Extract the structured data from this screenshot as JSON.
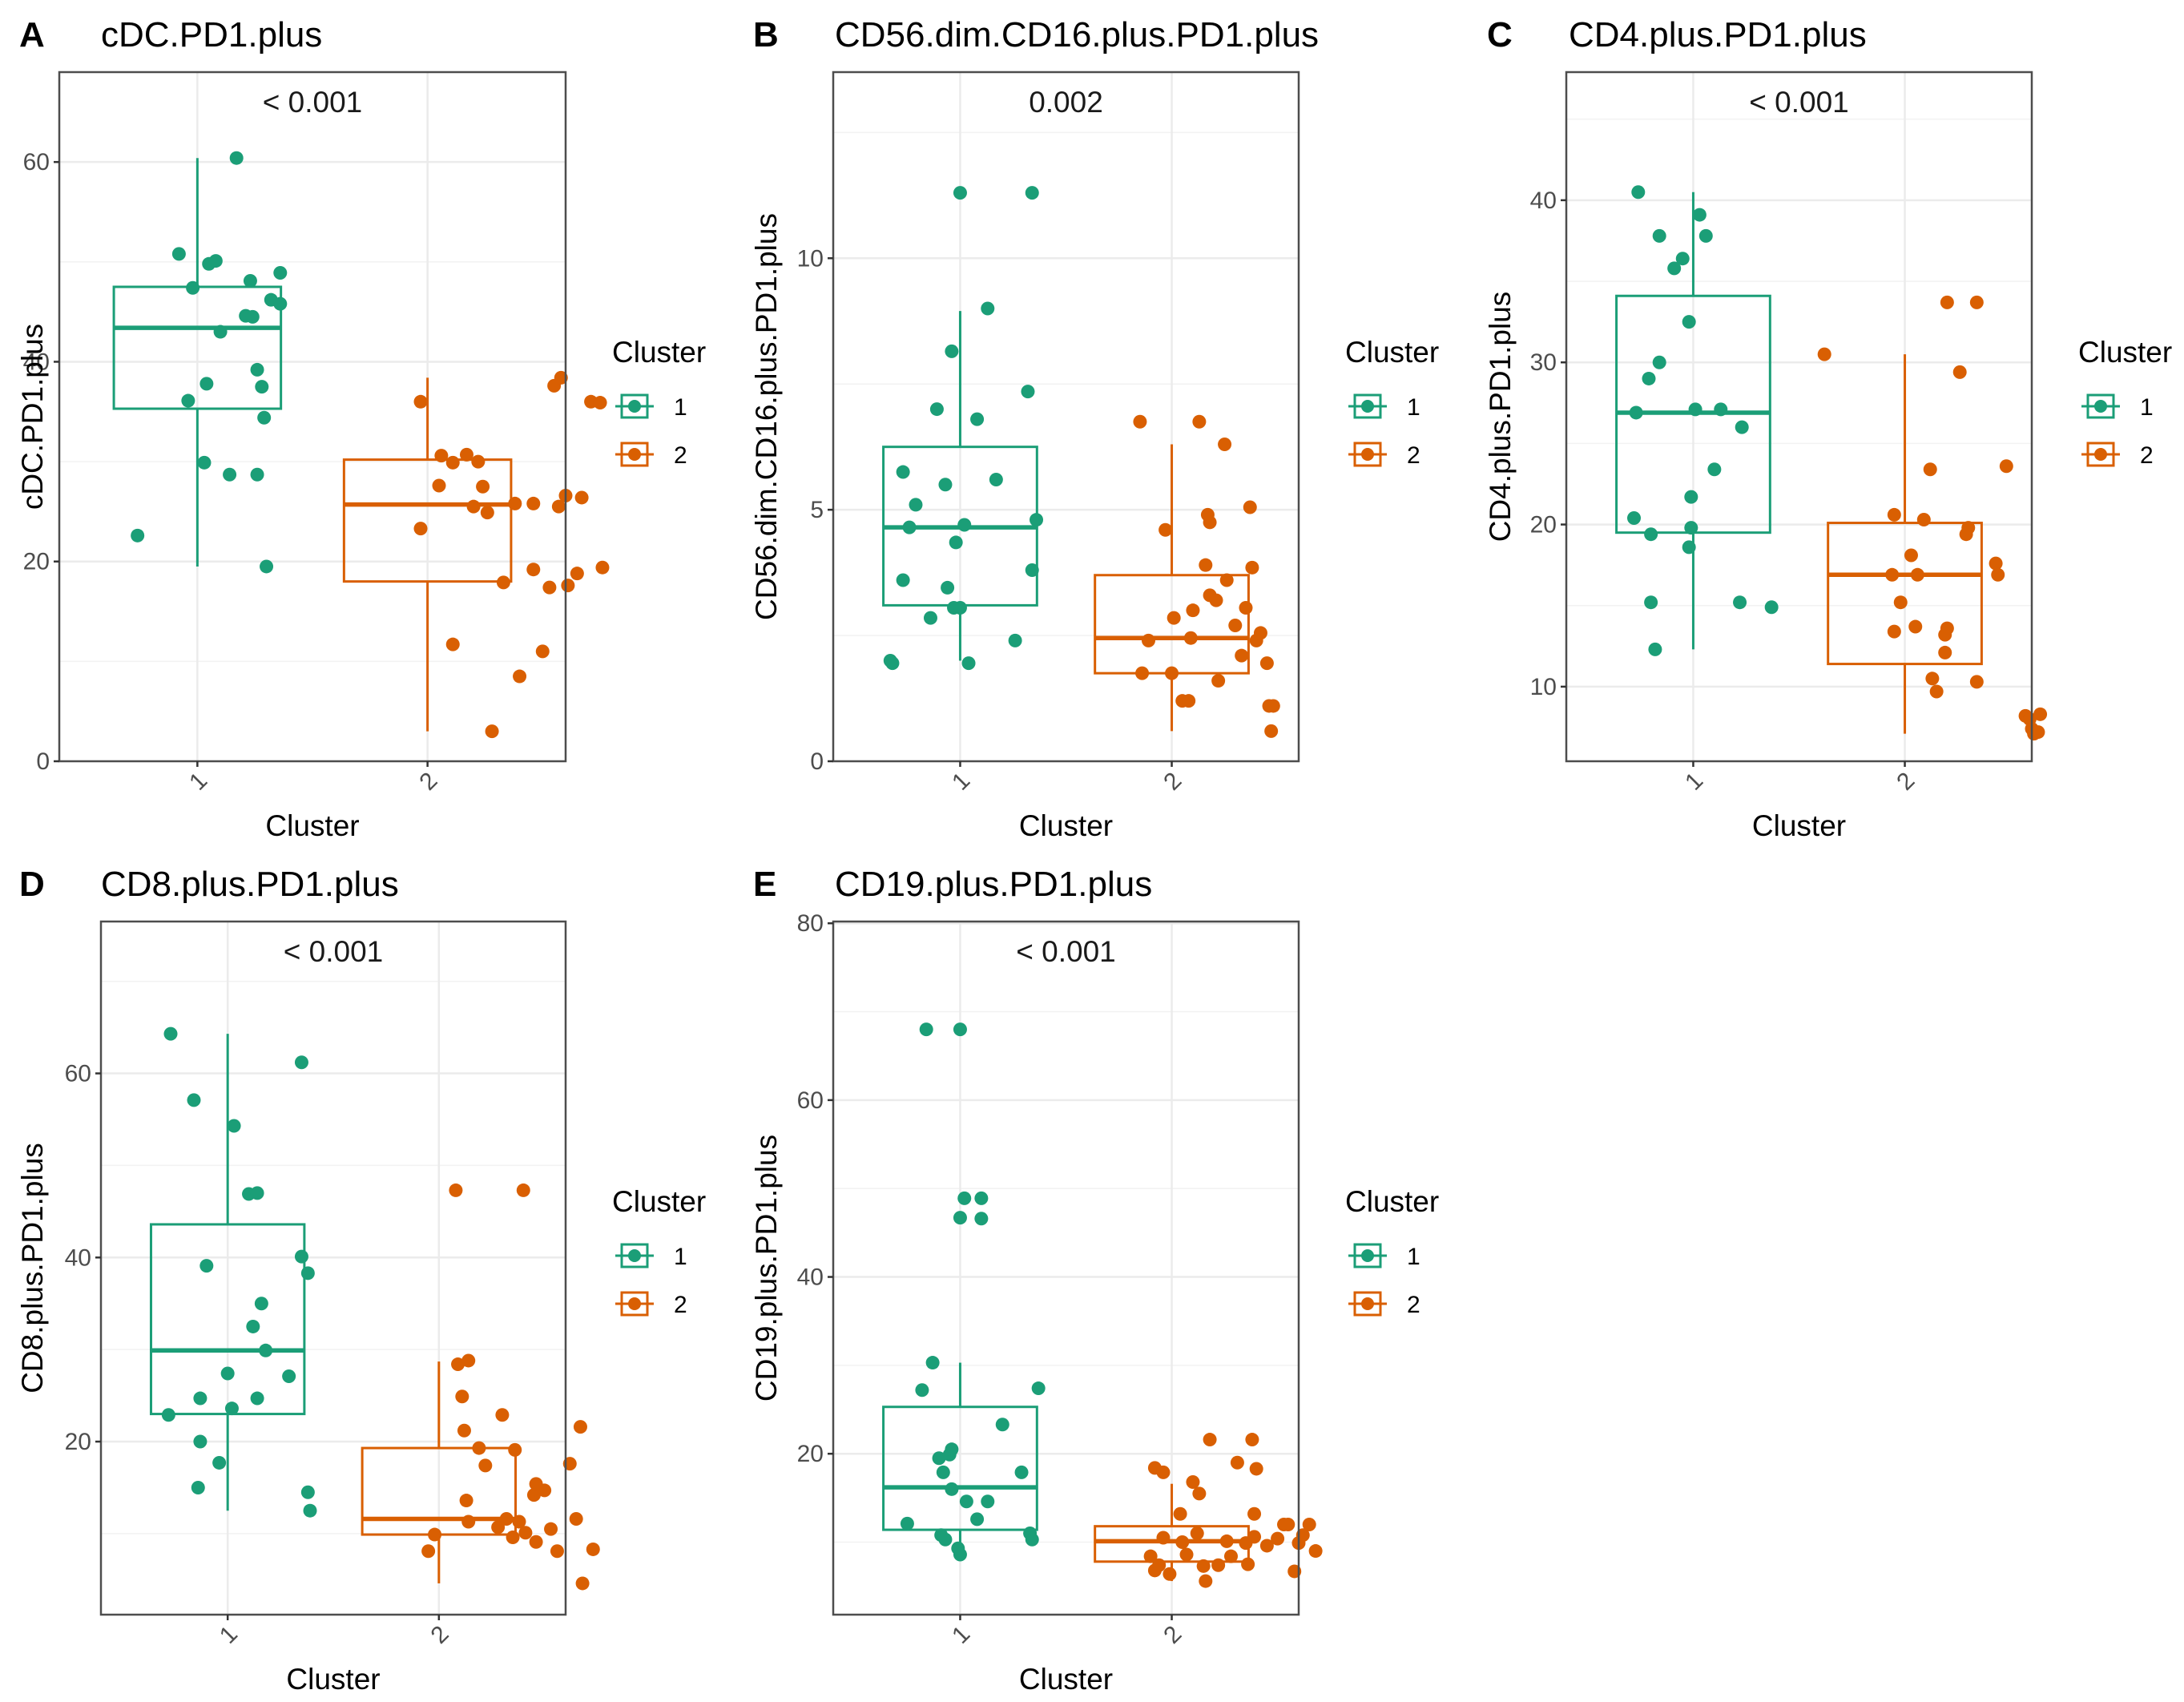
{
  "figure": {
    "colors": {
      "cluster1": "#1b9e77",
      "cluster2": "#d95f02",
      "grid": "#ebebeb",
      "border": "#4d4d4d"
    }
  },
  "chart_data": [
    {
      "type": "boxplot",
      "letter": "A",
      "title": "cDC.PD1.plus",
      "pvalue_label": "< 0.001",
      "xlabel": "Cluster",
      "ylabel": "cDC.PD1.plus",
      "categories": [
        "1",
        "2"
      ],
      "ylim": [
        0,
        69
      ],
      "yticks": [
        0,
        20,
        40,
        60
      ],
      "legend": {
        "title": "Cluster",
        "labels": [
          "1",
          "2"
        ]
      },
      "boxes": [
        {
          "cluster": "1",
          "q1": 35.3,
          "median": 43.4,
          "q3": 47.5,
          "whisker_low": 19.5,
          "whisker_high": 60.4
        },
        {
          "cluster": "2",
          "q1": 18.0,
          "median": 25.7,
          "q3": 30.2,
          "whisker_low": 3.0,
          "whisker_high": 38.4
        }
      ],
      "points": [
        [
          0.74,
          22.6
        ],
        [
          0.92,
          50.8
        ],
        [
          0.96,
          36.1
        ],
        [
          0.98,
          47.4
        ],
        [
          1.03,
          29.9
        ],
        [
          1.04,
          37.8
        ],
        [
          1.05,
          49.8
        ],
        [
          1.08,
          50.1
        ],
        [
          1.1,
          43.0
        ],
        [
          1.14,
          28.7
        ],
        [
          1.17,
          60.4
        ],
        [
          1.21,
          44.6
        ],
        [
          1.23,
          48.1
        ],
        [
          1.24,
          44.5
        ],
        [
          1.26,
          28.7
        ],
        [
          1.28,
          37.5
        ],
        [
          1.29,
          34.4
        ],
        [
          1.3,
          19.5
        ],
        [
          1.32,
          46.2
        ],
        [
          1.36,
          48.9
        ],
        [
          1.36,
          45.8
        ],
        [
          1.26,
          39.2
        ],
        [
          1.97,
          36.0
        ],
        [
          1.97,
          23.3
        ],
        [
          2.05,
          27.6
        ],
        [
          2.06,
          30.6
        ],
        [
          2.11,
          29.9
        ],
        [
          2.11,
          11.7
        ],
        [
          2.17,
          30.7
        ],
        [
          2.2,
          25.5
        ],
        [
          2.22,
          30.0
        ],
        [
          2.24,
          27.5
        ],
        [
          2.26,
          24.9
        ],
        [
          2.28,
          3.0
        ],
        [
          2.33,
          17.9
        ],
        [
          2.38,
          25.8
        ],
        [
          2.4,
          8.5
        ],
        [
          2.46,
          25.8
        ],
        [
          2.46,
          19.2
        ],
        [
          2.5,
          11.0
        ],
        [
          2.53,
          17.4
        ],
        [
          2.55,
          37.6
        ],
        [
          2.57,
          25.5
        ],
        [
          2.58,
          38.4
        ],
        [
          2.6,
          26.6
        ],
        [
          2.61,
          17.6
        ],
        [
          2.67,
          26.4
        ],
        [
          2.65,
          18.8
        ],
        [
          2.71,
          36.0
        ],
        [
          2.75,
          35.9
        ],
        [
          2.76,
          19.4
        ]
      ]
    },
    {
      "type": "boxplot",
      "letter": "B",
      "title": "CD56.dim.CD16.plus.PD1.plus",
      "pvalue_label": "0.002",
      "xlabel": "Cluster",
      "ylabel": "CD56.dim.CD16.plus.PD1.plus",
      "categories": [
        "1",
        "2"
      ],
      "ylim": [
        0,
        13.7
      ],
      "yticks": [
        0,
        5,
        10
      ],
      "legend": {
        "title": "Cluster",
        "labels": [
          "1",
          "2"
        ]
      },
      "boxes": [
        {
          "cluster": "1",
          "q1": 3.1,
          "median": 4.65,
          "q3": 6.25,
          "whisker_low": 2.0,
          "whisker_high": 8.95
        },
        {
          "cluster": "2",
          "q1": 1.75,
          "median": 2.45,
          "q3": 3.7,
          "whisker_low": 0.6,
          "whisker_high": 6.3
        }
      ],
      "points": [
        [
          0.67,
          2.0
        ],
        [
          0.68,
          1.95
        ],
        [
          0.73,
          5.75
        ],
        [
          0.73,
          3.6
        ],
        [
          0.76,
          4.65
        ],
        [
          0.79,
          5.1
        ],
        [
          0.86,
          2.85
        ],
        [
          0.89,
          7.0
        ],
        [
          0.93,
          5.5
        ],
        [
          0.94,
          3.45
        ],
        [
          0.96,
          8.15
        ],
        [
          0.97,
          3.05
        ],
        [
          0.98,
          4.35
        ],
        [
          1.0,
          11.3
        ],
        [
          1.0,
          3.05
        ],
        [
          1.02,
          4.7
        ],
        [
          1.04,
          1.95
        ],
        [
          1.08,
          6.8
        ],
        [
          1.13,
          9.0
        ],
        [
          1.17,
          5.6
        ],
        [
          1.26,
          2.4
        ],
        [
          1.32,
          7.35
        ],
        [
          1.34,
          11.3
        ],
        [
          1.34,
          3.8
        ],
        [
          1.36,
          4.8
        ],
        [
          1.85,
          6.75
        ],
        [
          1.86,
          1.75
        ],
        [
          1.89,
          2.4
        ],
        [
          1.97,
          4.6
        ],
        [
          2.0,
          1.75
        ],
        [
          2.01,
          2.85
        ],
        [
          2.05,
          1.2
        ],
        [
          2.08,
          1.2
        ],
        [
          2.09,
          2.45
        ],
        [
          2.1,
          3.0
        ],
        [
          2.13,
          6.75
        ],
        [
          2.16,
          3.9
        ],
        [
          2.17,
          4.9
        ],
        [
          2.18,
          4.75
        ],
        [
          2.18,
          3.3
        ],
        [
          2.21,
          3.2
        ],
        [
          2.22,
          1.6
        ],
        [
          2.25,
          6.3
        ],
        [
          2.26,
          3.6
        ],
        [
          2.3,
          2.7
        ],
        [
          2.33,
          2.1
        ],
        [
          2.35,
          3.05
        ],
        [
          2.37,
          5.05
        ],
        [
          2.38,
          3.85
        ],
        [
          2.4,
          2.4
        ],
        [
          2.42,
          2.55
        ],
        [
          2.45,
          1.95
        ],
        [
          2.46,
          1.1
        ],
        [
          2.48,
          1.1
        ],
        [
          2.47,
          0.6
        ]
      ]
    },
    {
      "type": "boxplot",
      "letter": "C",
      "title": "CD4.plus.PD1.plus",
      "pvalue_label": "< 0.001",
      "xlabel": "Cluster",
      "ylabel": "CD4.plus.PD1.plus",
      "categories": [
        "1",
        "2"
      ],
      "ylim": [
        5.4,
        47.9
      ],
      "yticks": [
        10,
        20,
        30,
        40
      ],
      "legend": {
        "title": "Cluster",
        "labels": [
          "1",
          "2"
        ]
      },
      "boxes": [
        {
          "cluster": "1",
          "q1": 19.5,
          "median": 26.9,
          "q3": 34.1,
          "whisker_low": 12.3,
          "whisker_high": 40.5
        },
        {
          "cluster": "2",
          "q1": 11.4,
          "median": 16.9,
          "q3": 20.1,
          "whisker_low": 7.1,
          "whisker_high": 30.5
        }
      ],
      "points": [
        [
          0.72,
          20.4
        ],
        [
          0.73,
          26.9
        ],
        [
          0.74,
          40.5
        ],
        [
          0.79,
          29.0
        ],
        [
          0.8,
          19.4
        ],
        [
          0.8,
          15.2
        ],
        [
          0.82,
          12.3
        ],
        [
          0.84,
          37.8
        ],
        [
          0.84,
          30.0
        ],
        [
          0.91,
          35.8
        ],
        [
          0.95,
          36.4
        ],
        [
          0.98,
          32.5
        ],
        [
          0.98,
          18.6
        ],
        [
          0.99,
          19.8
        ],
        [
          0.99,
          21.7
        ],
        [
          1.01,
          27.1
        ],
        [
          1.03,
          39.1
        ],
        [
          1.06,
          37.8
        ],
        [
          1.1,
          23.4
        ],
        [
          1.13,
          27.1
        ],
        [
          1.22,
          15.2
        ],
        [
          1.23,
          26.0
        ],
        [
          1.37,
          14.9
        ],
        [
          1.62,
          30.5
        ],
        [
          1.94,
          16.9
        ],
        [
          1.95,
          20.6
        ],
        [
          1.95,
          13.4
        ],
        [
          1.98,
          15.2
        ],
        [
          2.03,
          18.1
        ],
        [
          2.05,
          13.7
        ],
        [
          2.06,
          16.9
        ],
        [
          2.09,
          20.3
        ],
        [
          2.12,
          23.4
        ],
        [
          2.13,
          10.5
        ],
        [
          2.15,
          9.7
        ],
        [
          2.19,
          13.2
        ],
        [
          2.19,
          12.1
        ],
        [
          2.2,
          13.6
        ],
        [
          2.2,
          33.7
        ],
        [
          2.26,
          29.4
        ],
        [
          2.29,
          19.4
        ],
        [
          2.3,
          19.8
        ],
        [
          2.34,
          10.3
        ],
        [
          2.34,
          33.7
        ],
        [
          2.43,
          17.6
        ],
        [
          2.44,
          16.9
        ],
        [
          2.48,
          23.6
        ],
        [
          2.57,
          8.2
        ],
        [
          2.59,
          8.0
        ],
        [
          2.6,
          7.4
        ],
        [
          2.61,
          7.1
        ],
        [
          2.63,
          7.2
        ],
        [
          2.64,
          8.3
        ]
      ]
    },
    {
      "type": "boxplot",
      "letter": "D",
      "title": "CD8.plus.PD1.plus",
      "pvalue_label": "< 0.001",
      "xlabel": "Cluster",
      "ylabel": "CD8.plus.PD1.plus",
      "categories": [
        "1",
        "2"
      ],
      "ylim": [
        1.2,
        76.5
      ],
      "yticks": [
        20,
        40,
        60
      ],
      "legend": {
        "title": "Cluster",
        "labels": [
          "1",
          "2"
        ]
      },
      "boxes": [
        {
          "cluster": "1",
          "q1": 23.0,
          "median": 29.9,
          "q3": 43.6,
          "whisker_low": 12.5,
          "whisker_high": 64.3
        },
        {
          "cluster": "2",
          "q1": 9.9,
          "median": 11.6,
          "q3": 19.3,
          "whisker_low": 4.6,
          "whisker_high": 28.7
        }
      ],
      "points": [
        [
          0.73,
          64.3
        ],
        [
          0.72,
          22.9
        ],
        [
          0.84,
          57.1
        ],
        [
          0.86,
          15.0
        ],
        [
          0.87,
          24.7
        ],
        [
          0.87,
          20.0
        ],
        [
          0.9,
          39.1
        ],
        [
          0.96,
          17.7
        ],
        [
          1.0,
          27.4
        ],
        [
          1.02,
          23.6
        ],
        [
          1.03,
          54.3
        ],
        [
          1.1,
          46.9
        ],
        [
          1.12,
          32.5
        ],
        [
          1.14,
          47.0
        ],
        [
          1.14,
          24.7
        ],
        [
          1.16,
          35.0
        ],
        [
          1.18,
          29.9
        ],
        [
          1.29,
          27.1
        ],
        [
          1.35,
          61.2
        ],
        [
          1.35,
          40.1
        ],
        [
          1.38,
          38.3
        ],
        [
          1.38,
          14.5
        ],
        [
          1.39,
          12.5
        ],
        [
          1.95,
          8.1
        ],
        [
          1.98,
          9.9
        ],
        [
          2.08,
          47.3
        ],
        [
          2.09,
          28.4
        ],
        [
          2.11,
          24.9
        ],
        [
          2.12,
          21.2
        ],
        [
          2.13,
          13.6
        ],
        [
          2.14,
          11.3
        ],
        [
          2.14,
          28.8
        ],
        [
          2.19,
          19.3
        ],
        [
          2.22,
          17.4
        ],
        [
          2.28,
          10.7
        ],
        [
          2.3,
          22.9
        ],
        [
          2.32,
          11.6
        ],
        [
          2.35,
          9.6
        ],
        [
          2.36,
          19.1
        ],
        [
          2.38,
          11.3
        ],
        [
          2.4,
          47.3
        ],
        [
          2.41,
          10.1
        ],
        [
          2.45,
          14.2
        ],
        [
          2.46,
          15.4
        ],
        [
          2.46,
          9.1
        ],
        [
          2.5,
          14.7
        ],
        [
          2.53,
          10.5
        ],
        [
          2.56,
          8.1
        ],
        [
          2.62,
          17.6
        ],
        [
          2.65,
          11.6
        ],
        [
          2.67,
          21.6
        ],
        [
          2.68,
          4.6
        ],
        [
          2.73,
          8.3
        ]
      ]
    },
    {
      "type": "boxplot",
      "letter": "E",
      "title": "CD19.plus.PD1.plus",
      "pvalue_label": "< 0.001",
      "xlabel": "Cluster",
      "ylabel": "CD19.plus.PD1.plus",
      "categories": [
        "1",
        "2"
      ],
      "ylim": [
        1.8,
        80.2
      ],
      "yticks": [
        20,
        40,
        60,
        80
      ],
      "legend": {
        "title": "Cluster",
        "labels": [
          "1",
          "2"
        ]
      },
      "boxes": [
        {
          "cluster": "1",
          "q1": 11.4,
          "median": 16.2,
          "q3": 25.3,
          "whisker_low": 8.6,
          "whisker_high": 30.3
        },
        {
          "cluster": "2",
          "q1": 7.8,
          "median": 10.1,
          "q3": 11.8,
          "whisker_low": 5.6,
          "whisker_high": 16.6
        }
      ],
      "points": [
        [
          0.75,
          12.1
        ],
        [
          0.82,
          27.2
        ],
        [
          0.84,
          68.0
        ],
        [
          0.87,
          30.3
        ],
        [
          0.9,
          19.5
        ],
        [
          0.91,
          10.8
        ],
        [
          0.92,
          17.9
        ],
        [
          0.93,
          10.3
        ],
        [
          0.95,
          19.9
        ],
        [
          0.96,
          20.5
        ],
        [
          0.96,
          16.0
        ],
        [
          0.99,
          9.3
        ],
        [
          1.0,
          8.6
        ],
        [
          1.0,
          68.0
        ],
        [
          1.0,
          46.7
        ],
        [
          1.02,
          48.9
        ],
        [
          1.03,
          14.6
        ],
        [
          1.08,
          12.6
        ],
        [
          1.1,
          48.9
        ],
        [
          1.1,
          46.6
        ],
        [
          1.13,
          14.6
        ],
        [
          1.2,
          23.3
        ],
        [
          1.29,
          17.9
        ],
        [
          1.33,
          11.0
        ],
        [
          1.34,
          10.3
        ],
        [
          1.37,
          27.4
        ],
        [
          1.9,
          8.4
        ],
        [
          1.92,
          18.4
        ],
        [
          1.92,
          6.8
        ],
        [
          1.94,
          7.4
        ],
        [
          1.96,
          17.9
        ],
        [
          1.96,
          10.5
        ],
        [
          1.99,
          6.4
        ],
        [
          2.04,
          13.2
        ],
        [
          2.05,
          10.0
        ],
        [
          2.07,
          8.6
        ],
        [
          2.1,
          16.8
        ],
        [
          2.12,
          11.0
        ],
        [
          2.13,
          15.5
        ],
        [
          2.15,
          7.3
        ],
        [
          2.16,
          5.6
        ],
        [
          2.18,
          21.6
        ],
        [
          2.22,
          7.4
        ],
        [
          2.26,
          10.1
        ],
        [
          2.28,
          8.4
        ],
        [
          2.31,
          19.0
        ],
        [
          2.35,
          9.9
        ],
        [
          2.36,
          7.5
        ],
        [
          2.38,
          21.6
        ],
        [
          2.39,
          13.2
        ],
        [
          2.39,
          10.6
        ],
        [
          2.4,
          18.3
        ],
        [
          2.45,
          9.6
        ],
        [
          2.5,
          10.4
        ],
        [
          2.53,
          12.0
        ],
        [
          2.55,
          12.0
        ],
        [
          2.58,
          6.7
        ],
        [
          2.6,
          9.9
        ],
        [
          2.62,
          10.8
        ],
        [
          2.65,
          12.0
        ],
        [
          2.68,
          9.0
        ]
      ]
    }
  ]
}
